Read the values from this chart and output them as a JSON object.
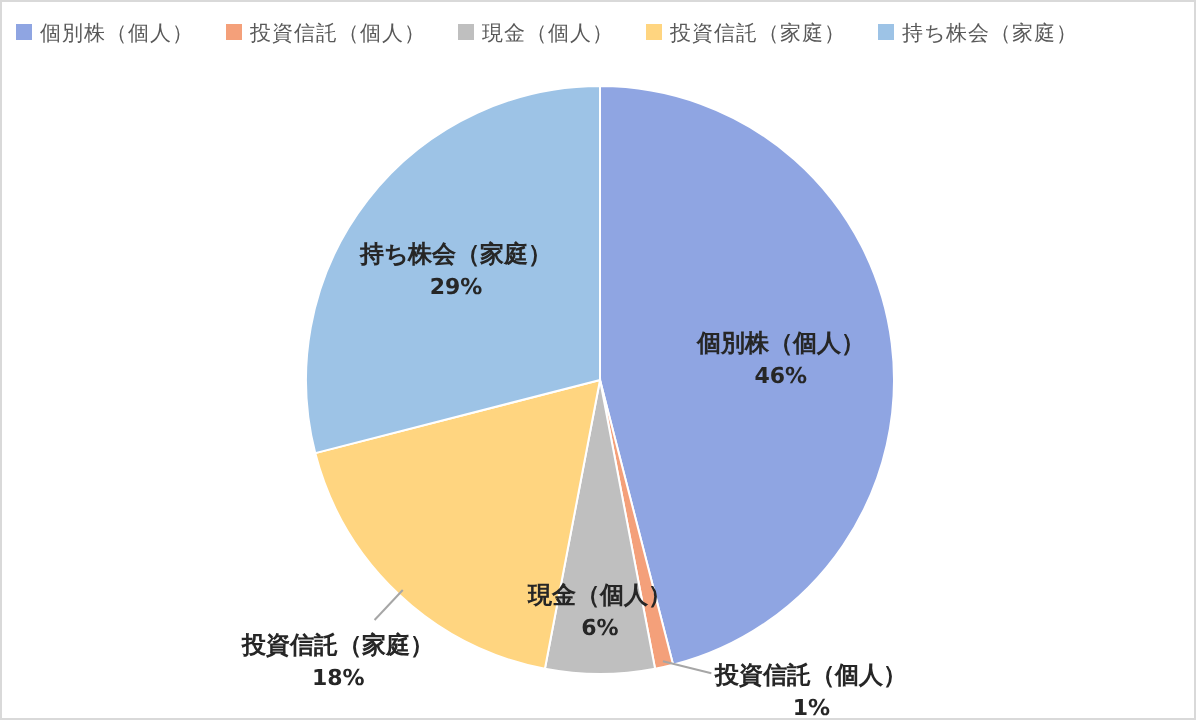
{
  "chart_data": {
    "type": "pie",
    "categories": [
      "個別株（個人）",
      "投資信託（個人）",
      "現金（個人）",
      "投資信託（家庭）",
      "持ち株会（家庭）"
    ],
    "values": [
      46,
      1,
      6,
      18,
      29
    ],
    "colors": [
      "#8fa5e2",
      "#f4a07a",
      "#bfbfbf",
      "#ffd580",
      "#9dc3e6"
    ],
    "value_labels": [
      "46%",
      "1%",
      "6%",
      "18%",
      "29%"
    ],
    "legend": "top"
  }
}
